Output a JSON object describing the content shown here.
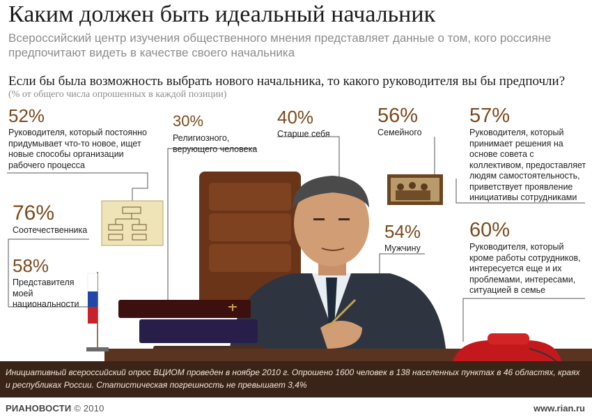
{
  "header": {
    "title": "Каким должен быть идеальный начальник",
    "subtitle": "Всероссийский центр изучения общественного мнения представляет данные о том, кого россияне предпочитают видеть в качестве своего начальника"
  },
  "question": "Если бы была возможность выбрать нового начальника, то какого руководителя вы бы предпочли?",
  "note": "(% от общего числа опрошенных в каждой позиции)",
  "stats": [
    {
      "value": "52%",
      "label": "Руководителя, который постоянно придумывает что-то новое, ищет новые способы организации рабочего процесса"
    },
    {
      "value": "30%",
      "label": "Религиозного, верующего человека"
    },
    {
      "value": "40%",
      "label": "Старше себя"
    },
    {
      "value": "56%",
      "label": "Семейного"
    },
    {
      "value": "57%",
      "label": "Руководителя, который принимает решения на основе совета с коллективом, предоставляет людям самостоятельность, приветствует проявление инициативы сотрудниками"
    },
    {
      "value": "76%",
      "label": "Соотечественника"
    },
    {
      "value": "58%",
      "label": "Представителя моей национальности"
    },
    {
      "value": "54%",
      "label": "Мужчину"
    },
    {
      "value": "60%",
      "label": "Руководителя, который кроме работы сотрудников, интересуется еще и их проблемами, интересами, ситуацией в семье"
    }
  ],
  "footer": {
    "text": "Инициативный всероссийский опрос ВЦИОМ проведен в ноябре 2010 г. Опрошено 1600 человек в 138 населенных пунктах в 46 областях, краях и республиках России. Статистическая погрешность не превышает 3,4%"
  },
  "credits": {
    "brand": "РИАНОВОСТИ",
    "copyright": "© 2010",
    "site": "www.rian.ru"
  },
  "colors": {
    "accent": "#7a4a1d",
    "footer_bg": "#3a2418",
    "suit": "#2f3540",
    "desk": "#5b3420"
  }
}
